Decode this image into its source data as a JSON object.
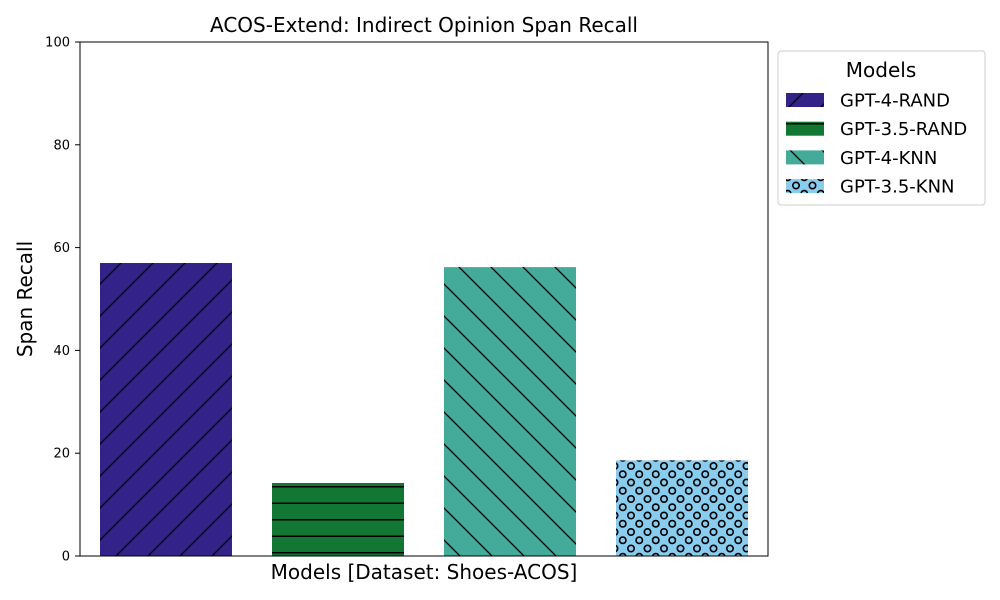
{
  "chart_data": {
    "type": "bar",
    "title": "ACOS-Extend: Indirect Opinion Span Recall",
    "xlabel": "Models [Dataset: Shoes-ACOS]",
    "ylabel": "Span Recall",
    "ylim": [
      0,
      100
    ],
    "yticks": [
      "0",
      "20",
      "40",
      "60",
      "80",
      "100"
    ],
    "grid": false,
    "legend_title": "Models",
    "legend_position": "outside right, top",
    "series": [
      {
        "name": "GPT-4-RAND",
        "value": 57.0,
        "color": "#332288",
        "pattern": "diagonal-forward"
      },
      {
        "name": "GPT-3.5-RAND",
        "value": 14.2,
        "color": "#117733",
        "pattern": "horizontal"
      },
      {
        "name": "GPT-4-KNN",
        "value": 56.2,
        "color": "#44AA99",
        "pattern": "diagonal-back"
      },
      {
        "name": "GPT-3.5-KNN",
        "value": 18.6,
        "color": "#88CCEE",
        "pattern": "circles"
      }
    ]
  }
}
